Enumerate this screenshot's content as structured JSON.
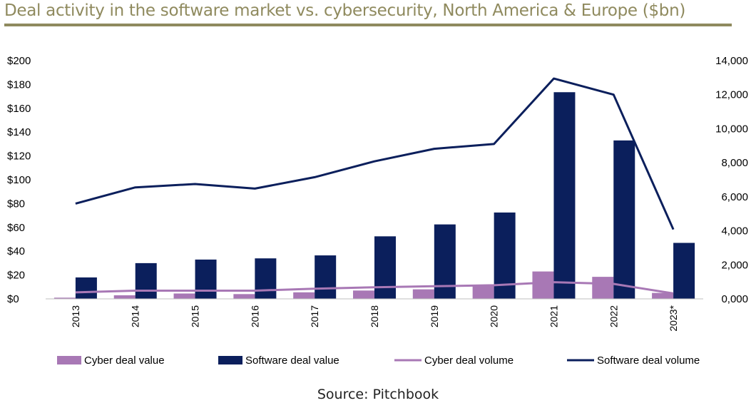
{
  "title": "Deal activity in the software market vs. cybersecurity, North America & Europe ($bn)",
  "source": "Source: Pitchbook",
  "colors": {
    "cyber_value": "#a878b5",
    "software_value": "#0b1f5c",
    "cyber_volume": "#a878b5",
    "software_volume": "#0b1f5c",
    "title": "#8f8a5e"
  },
  "chart_data": {
    "type": "bar+line",
    "categories": [
      "2013",
      "2014",
      "2015",
      "2016",
      "2017",
      "2018",
      "2019",
      "2020",
      "2021",
      "2022",
      "2023*"
    ],
    "left_axis": {
      "ylim": [
        0,
        200
      ],
      "ticks": [
        0,
        20,
        40,
        60,
        80,
        100,
        120,
        140,
        160,
        180,
        200
      ],
      "tick_labels": [
        "$0",
        "$20",
        "$40",
        "$60",
        "$80",
        "$100",
        "$120",
        "$140",
        "$160",
        "$180",
        "$200"
      ]
    },
    "right_axis": {
      "ylim": [
        0,
        14000
      ],
      "ticks": [
        0,
        2000,
        4000,
        6000,
        8000,
        10000,
        12000,
        14000
      ],
      "tick_labels": [
        "0,000",
        "2,000",
        "4,000",
        "6,000",
        "8,000",
        "10,000",
        "12,000",
        "14,000"
      ]
    },
    "series": [
      {
        "name": "Cyber deal value",
        "type": "bar",
        "axis": "left",
        "values": [
          1,
          3,
          4.5,
          4,
          5.5,
          7,
          8,
          11.5,
          23,
          18.5,
          5
        ]
      },
      {
        "name": "Software deal value",
        "type": "bar",
        "axis": "left",
        "values": [
          18,
          30,
          33,
          34,
          36.5,
          52.5,
          62.5,
          72.5,
          173.5,
          133,
          47
        ]
      },
      {
        "name": "Cyber deal volume",
        "type": "line",
        "axis": "right",
        "values": [
          380,
          480,
          480,
          480,
          600,
          680,
          740,
          800,
          980,
          880,
          320
        ]
      },
      {
        "name": "Software deal volume",
        "type": "line",
        "axis": "right",
        "values": [
          5600,
          6550,
          6750,
          6480,
          7150,
          8080,
          8820,
          9100,
          12950,
          12000,
          4080
        ]
      }
    ],
    "legend_position": "bottom",
    "grid": false
  }
}
